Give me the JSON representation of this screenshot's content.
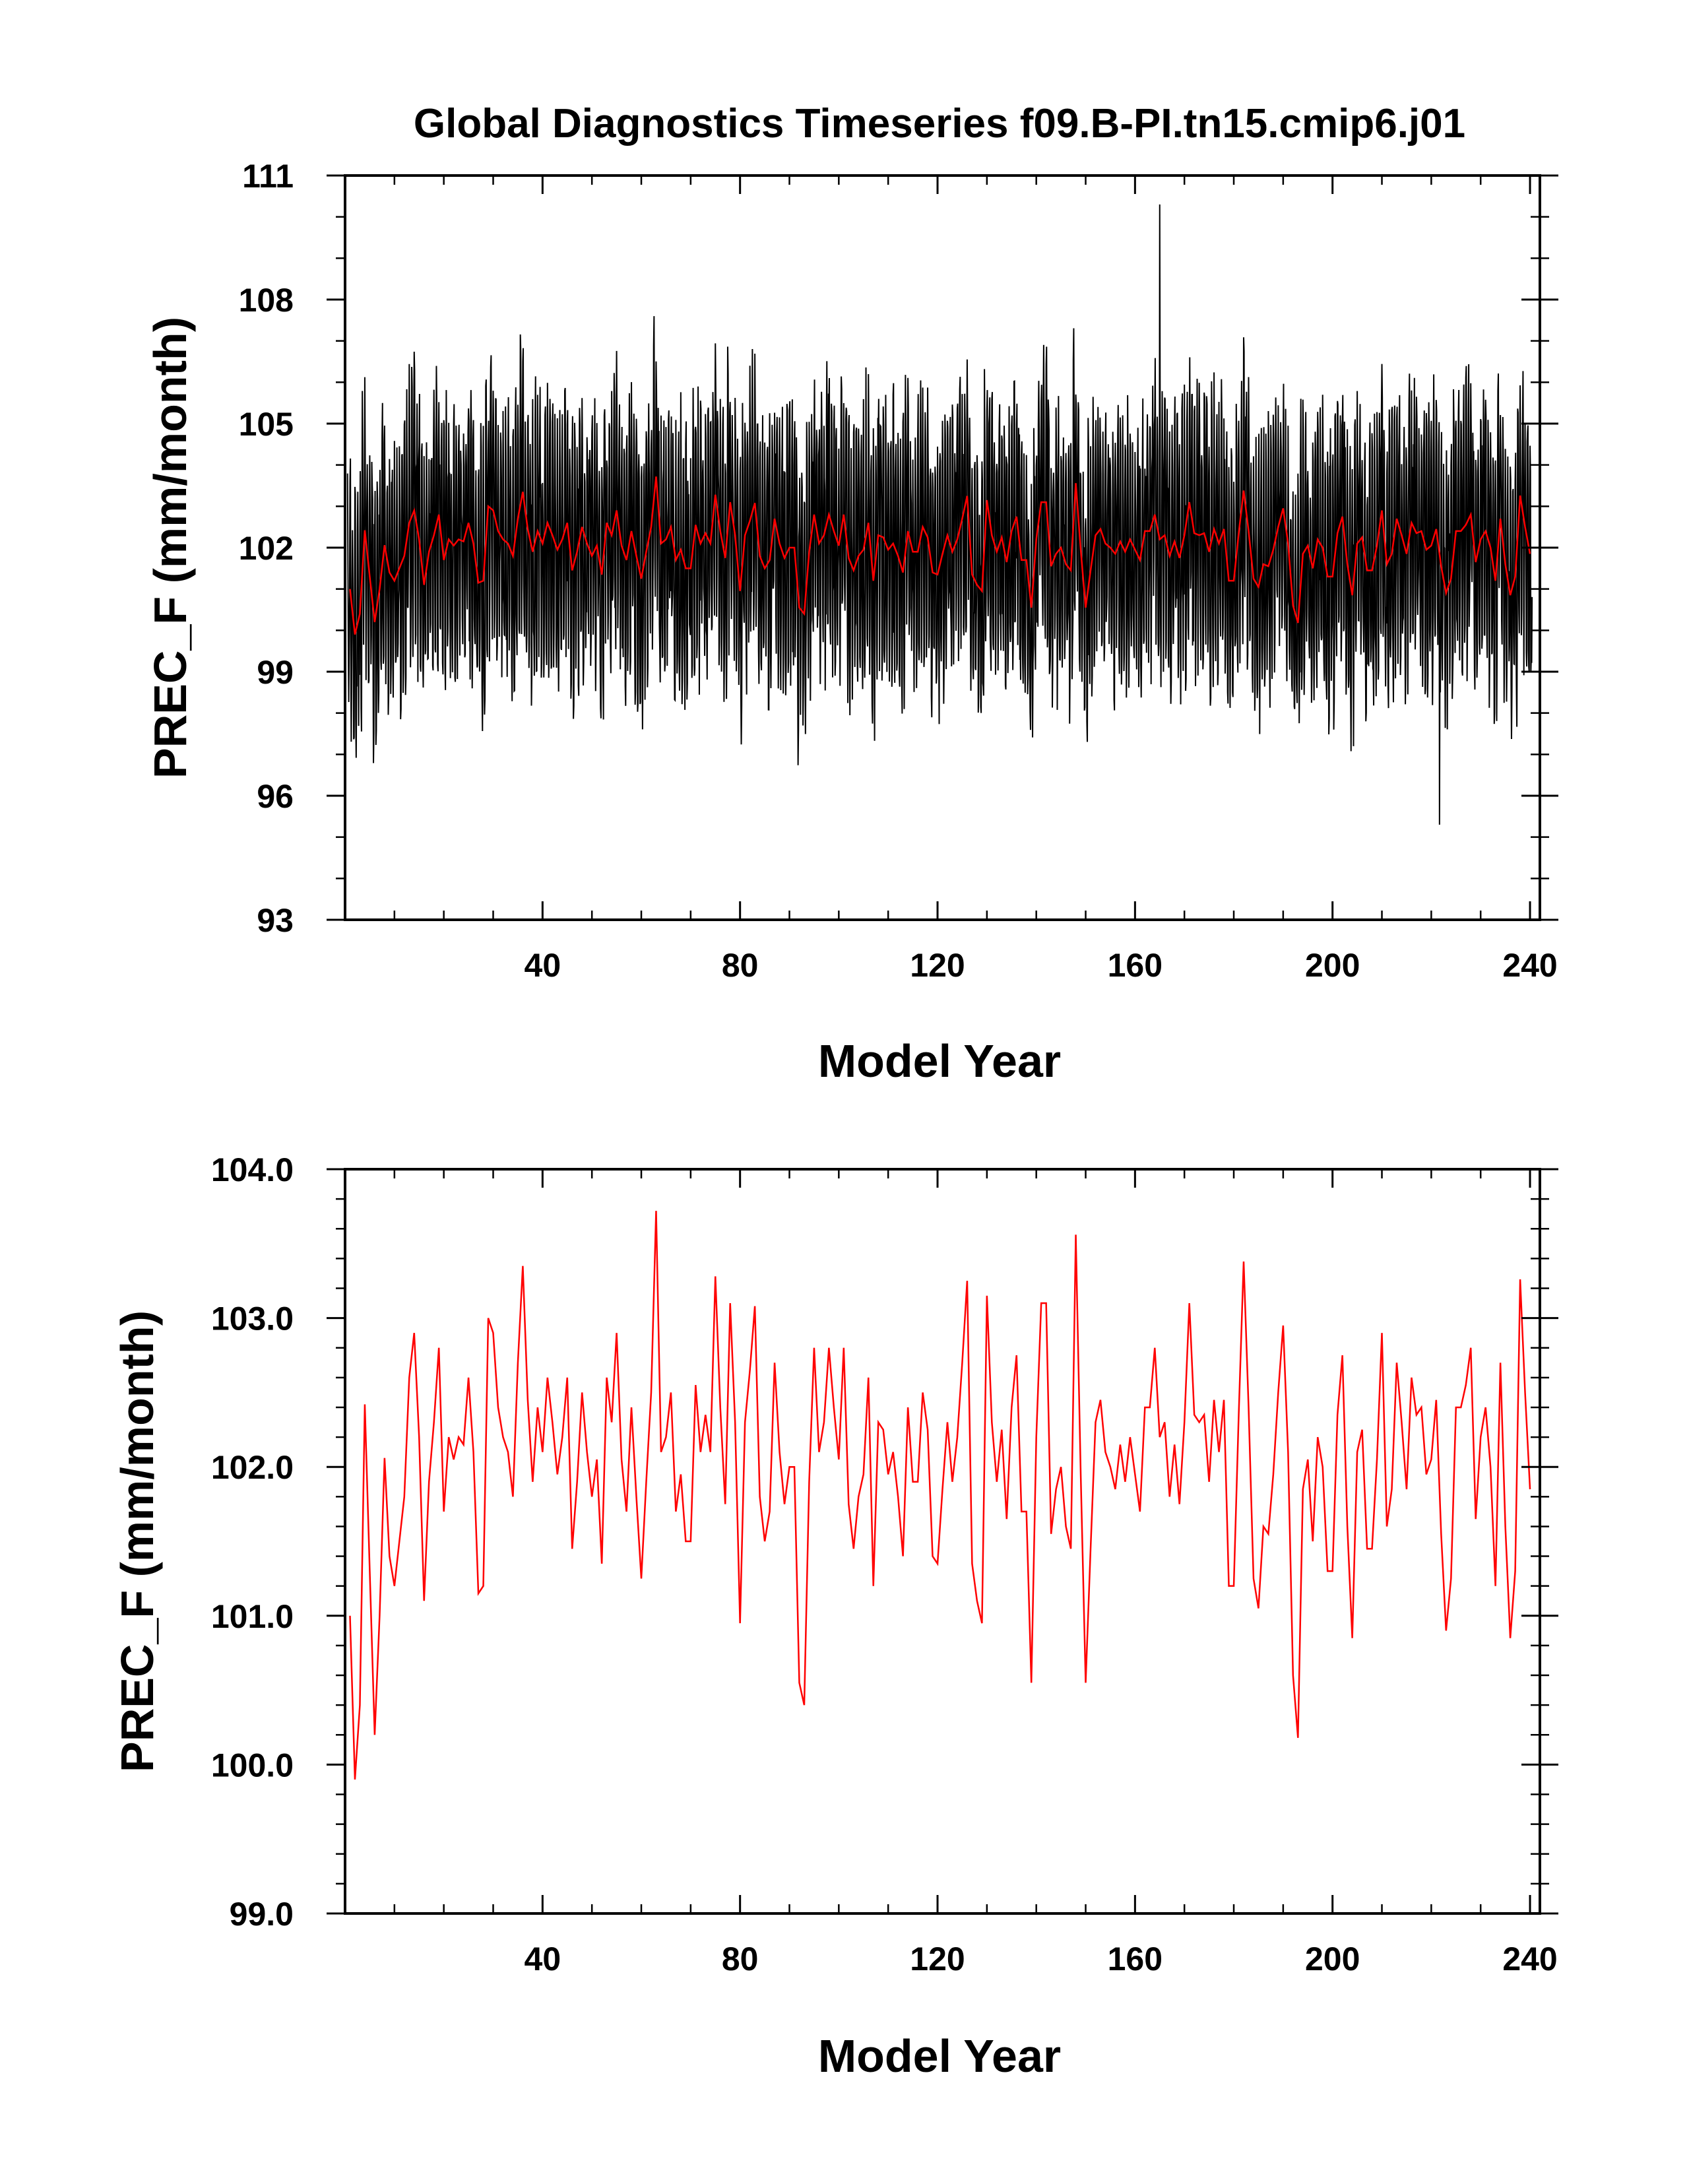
{
  "title": "Global Diagnostics Timeseries f09.B-PI.tn15.cmip6.j01",
  "colors": {
    "monthly": "#000000",
    "annual": "#ff0000",
    "frame": "#000000",
    "background": "#ffffff"
  },
  "chart_data": [
    {
      "type": "line",
      "panel": "top",
      "xlabel": "Model Year",
      "ylabel": "PREC_F (mm/month)",
      "xlim": [
        0,
        242
      ],
      "ylim": [
        93,
        111
      ],
      "x_ticks": [
        40,
        80,
        120,
        160,
        200,
        240
      ],
      "x_tick_labels": [
        "40",
        "80",
        "120",
        "160",
        "200",
        "240"
      ],
      "y_ticks": [
        93,
        96,
        99,
        102,
        105,
        108,
        111
      ],
      "y_tick_labels": [
        "93",
        "96",
        "99",
        "102",
        "105",
        "108",
        "111"
      ],
      "series": [
        {
          "style": "monthly series (black) — dense seasonal oscillation, amplitude approx. ±3 about the annual mean; envelope spans about 95.3 to 110.3",
          "monthly_envelope_extremes": {
            "max": 110.3,
            "max_year": 165,
            "min": 95.3,
            "min_year": 222
          },
          "seasonal_amplitude": 3.0
        },
        {
          "style": "annual mean series (red)",
          "same_as_bottom_panel": true
        }
      ]
    },
    {
      "type": "line",
      "panel": "bottom",
      "xlabel": "Model Year",
      "ylabel": "PREC_F (mm/month)",
      "xlim": [
        0,
        242
      ],
      "ylim": [
        99.0,
        104.0
      ],
      "x_ticks": [
        40,
        80,
        120,
        160,
        200,
        240
      ],
      "x_tick_labels": [
        "40",
        "80",
        "120",
        "160",
        "200",
        "240"
      ],
      "y_ticks": [
        99.0,
        100.0,
        101.0,
        102.0,
        103.0,
        104.0
      ],
      "y_tick_labels": [
        "99.0",
        "100.0",
        "101.0",
        "102.0",
        "103.0",
        "104.0"
      ],
      "x_start": 1,
      "series": [
        {
          "style": "annual mean (red)",
          "values": [
            101.0,
            99.9,
            100.4,
            102.42,
            101.3,
            100.2,
            101.0,
            102.06,
            101.4,
            101.2,
            101.5,
            101.8,
            102.6,
            102.9,
            102.2,
            101.1,
            101.9,
            102.3,
            102.8,
            101.7,
            102.2,
            102.05,
            102.2,
            102.15,
            102.6,
            102.1,
            101.15,
            101.2,
            103.0,
            102.9,
            102.4,
            102.2,
            102.1,
            101.8,
            102.7,
            103.35,
            102.45,
            101.9,
            102.4,
            102.1,
            102.6,
            102.3,
            101.95,
            102.2,
            102.6,
            101.45,
            101.9,
            102.5,
            102.1,
            101.8,
            102.05,
            101.35,
            102.6,
            102.3,
            102.9,
            102.05,
            101.7,
            102.4,
            101.8,
            101.25,
            101.9,
            102.5,
            103.72,
            102.1,
            102.2,
            102.5,
            101.7,
            101.95,
            101.5,
            101.5,
            102.55,
            102.1,
            102.35,
            102.1,
            103.28,
            102.4,
            101.75,
            103.1,
            102.3,
            100.95,
            102.3,
            102.65,
            103.08,
            101.8,
            101.5,
            101.7,
            102.7,
            102.1,
            101.75,
            102.0,
            102.0,
            100.55,
            100.4,
            101.9,
            102.8,
            102.1,
            102.3,
            102.8,
            102.4,
            102.05,
            102.8,
            101.75,
            101.45,
            101.8,
            101.95,
            102.6,
            101.2,
            102.3,
            102.25,
            101.95,
            102.1,
            101.8,
            101.4,
            102.4,
            101.9,
            101.9,
            102.5,
            102.25,
            101.4,
            101.35,
            101.85,
            102.3,
            101.9,
            102.2,
            102.7,
            103.25,
            101.35,
            101.1,
            100.95,
            103.15,
            102.3,
            101.9,
            102.25,
            101.65,
            102.4,
            102.75,
            101.7,
            101.7,
            100.55,
            102.2,
            103.1,
            103.1,
            101.55,
            101.85,
            102.0,
            101.6,
            101.45,
            103.56,
            101.95,
            100.55,
            101.45,
            102.3,
            102.45,
            102.1,
            102.0,
            101.85,
            102.15,
            101.9,
            102.2,
            101.95,
            101.7,
            102.4,
            102.4,
            102.8,
            102.2,
            102.3,
            101.8,
            102.15,
            101.75,
            102.3,
            103.1,
            102.35,
            102.3,
            102.35,
            101.9,
            102.45,
            102.1,
            102.45,
            101.2,
            101.2,
            102.35,
            103.38,
            102.4,
            101.25,
            101.05,
            101.6,
            101.55,
            101.95,
            102.5,
            102.95,
            102.1,
            100.6,
            100.18,
            101.85,
            102.05,
            101.5,
            102.2,
            102.0,
            101.3,
            101.3,
            102.35,
            102.75,
            101.6,
            100.85,
            102.1,
            102.25,
            101.45,
            101.45,
            102.05,
            102.9,
            101.6,
            101.85,
            102.7,
            102.3,
            101.85,
            102.6,
            102.35,
            102.4,
            101.95,
            102.05,
            102.45,
            101.55,
            100.9,
            101.25,
            102.4,
            102.4,
            102.55,
            102.8,
            101.65,
            102.2,
            102.4,
            102.0,
            101.2,
            102.7,
            101.6,
            100.85,
            101.3,
            103.26,
            102.5,
            101.85
          ]
        }
      ]
    }
  ]
}
